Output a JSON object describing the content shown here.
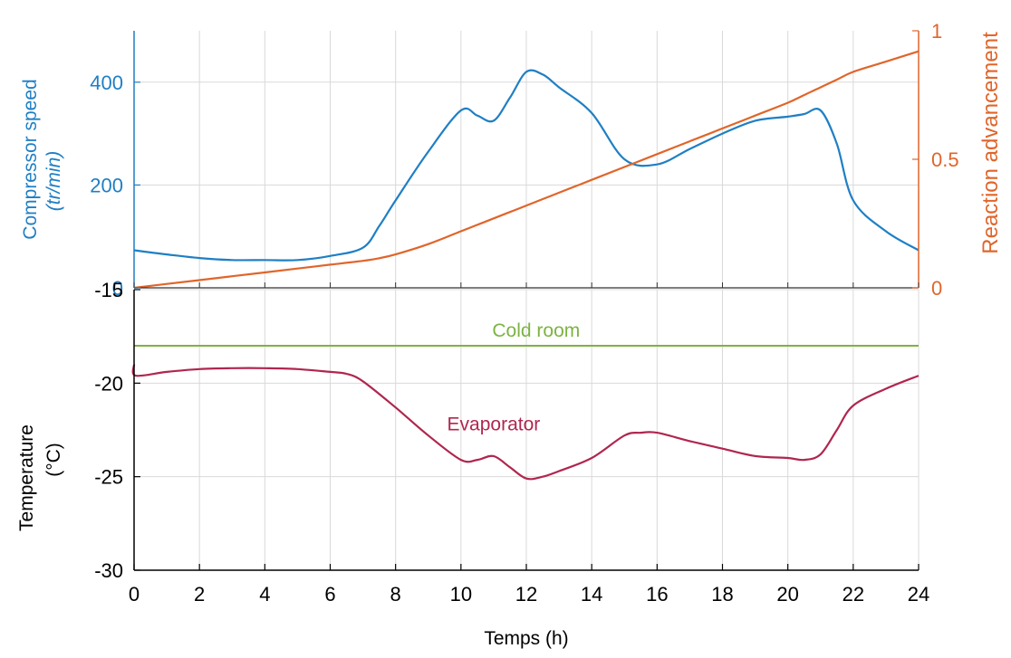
{
  "colors": {
    "compressor": "#1f7fc4",
    "reaction": "#e0652a",
    "cold_room": "#7cb342",
    "evaporator": "#b0264f",
    "axis": "#000000",
    "grid": "#d9d9d9"
  },
  "chart_data": [
    {
      "type": "line",
      "panel": "top",
      "grid": true,
      "x": [
        0,
        1,
        2,
        3,
        4,
        5,
        6,
        7,
        7.5,
        8,
        9,
        10,
        10.5,
        11,
        11.5,
        12,
        12.5,
        13,
        14,
        15,
        16,
        17,
        18,
        19,
        20,
        20.5,
        21,
        21.5,
        22,
        23,
        24
      ],
      "y_left": {
        "label_line1": "Compressor speed",
        "label_line2": "(tr/min)",
        "lim": [
          0,
          500
        ],
        "ticks": [
          "0",
          "200",
          "400"
        ],
        "tick_values": [
          0,
          200,
          400
        ],
        "series": [
          {
            "values": [
              73,
              65,
              58,
              54,
              54,
              54,
              62,
              78,
              120,
              170,
              265,
              345,
              335,
              325,
              370,
              420,
              415,
              390,
              340,
              250,
              240,
              270,
              300,
              325,
              333,
              338,
              345,
              280,
              170,
              110,
              73
            ]
          }
        ]
      },
      "y_right": {
        "label": "Reaction advancement",
        "lim": [
          0,
          1
        ],
        "ticks": [
          "0",
          "0.5",
          "1"
        ],
        "tick_values": [
          0,
          0.5,
          1
        ],
        "series": [
          {
            "values": [
              0,
              0.015,
              0.03,
              0.045,
              0.06,
              0.075,
              0.09,
              0.105,
              0.115,
              0.13,
              0.17,
              0.22,
              0.245,
              0.27,
              0.295,
              0.32,
              0.345,
              0.37,
              0.42,
              0.47,
              0.52,
              0.57,
              0.62,
              0.67,
              0.72,
              0.75,
              0.78,
              0.81,
              0.84,
              0.88,
              0.92
            ]
          }
        ]
      }
    },
    {
      "type": "line",
      "panel": "bottom",
      "grid": true,
      "ylabel_line1": "Temperature",
      "ylabel_line2": "(°C)",
      "xlabel": "Temps (h)",
      "xlim": [
        0,
        24
      ],
      "x_ticks": [
        "0",
        "2",
        "4",
        "6",
        "8",
        "10",
        "12",
        "14",
        "16",
        "18",
        "20",
        "22",
        "24"
      ],
      "ylim": [
        -30,
        -15
      ],
      "y_ticks": [
        "-15",
        "-20",
        "-25",
        "-30"
      ],
      "y_tick_values": [
        -15,
        -20,
        -25,
        -30
      ],
      "series": [
        {
          "name": "Cold room",
          "x": [
            0,
            24
          ],
          "values": [
            -18,
            -18
          ]
        },
        {
          "name": "Evaporator",
          "x": [
            0,
            0.05,
            1,
            2,
            3,
            4,
            5,
            6,
            6.5,
            7,
            8,
            9,
            10,
            10.5,
            11,
            11.5,
            12,
            12.5,
            13,
            14,
            15,
            15.5,
            16,
            17,
            18,
            19,
            20,
            20.5,
            21,
            21.5,
            22,
            23,
            24
          ],
          "values": [
            -19,
            -19.6,
            -19.4,
            -19.25,
            -19.2,
            -19.2,
            -19.25,
            -19.4,
            -19.5,
            -19.9,
            -21.3,
            -22.8,
            -24.1,
            -24.1,
            -23.9,
            -24.5,
            -25.1,
            -25.0,
            -24.7,
            -24.0,
            -22.8,
            -22.65,
            -22.65,
            -23.1,
            -23.5,
            -23.9,
            -24.0,
            -24.1,
            -23.8,
            -22.5,
            -21.2,
            -20.3,
            -19.6
          ]
        }
      ]
    }
  ]
}
